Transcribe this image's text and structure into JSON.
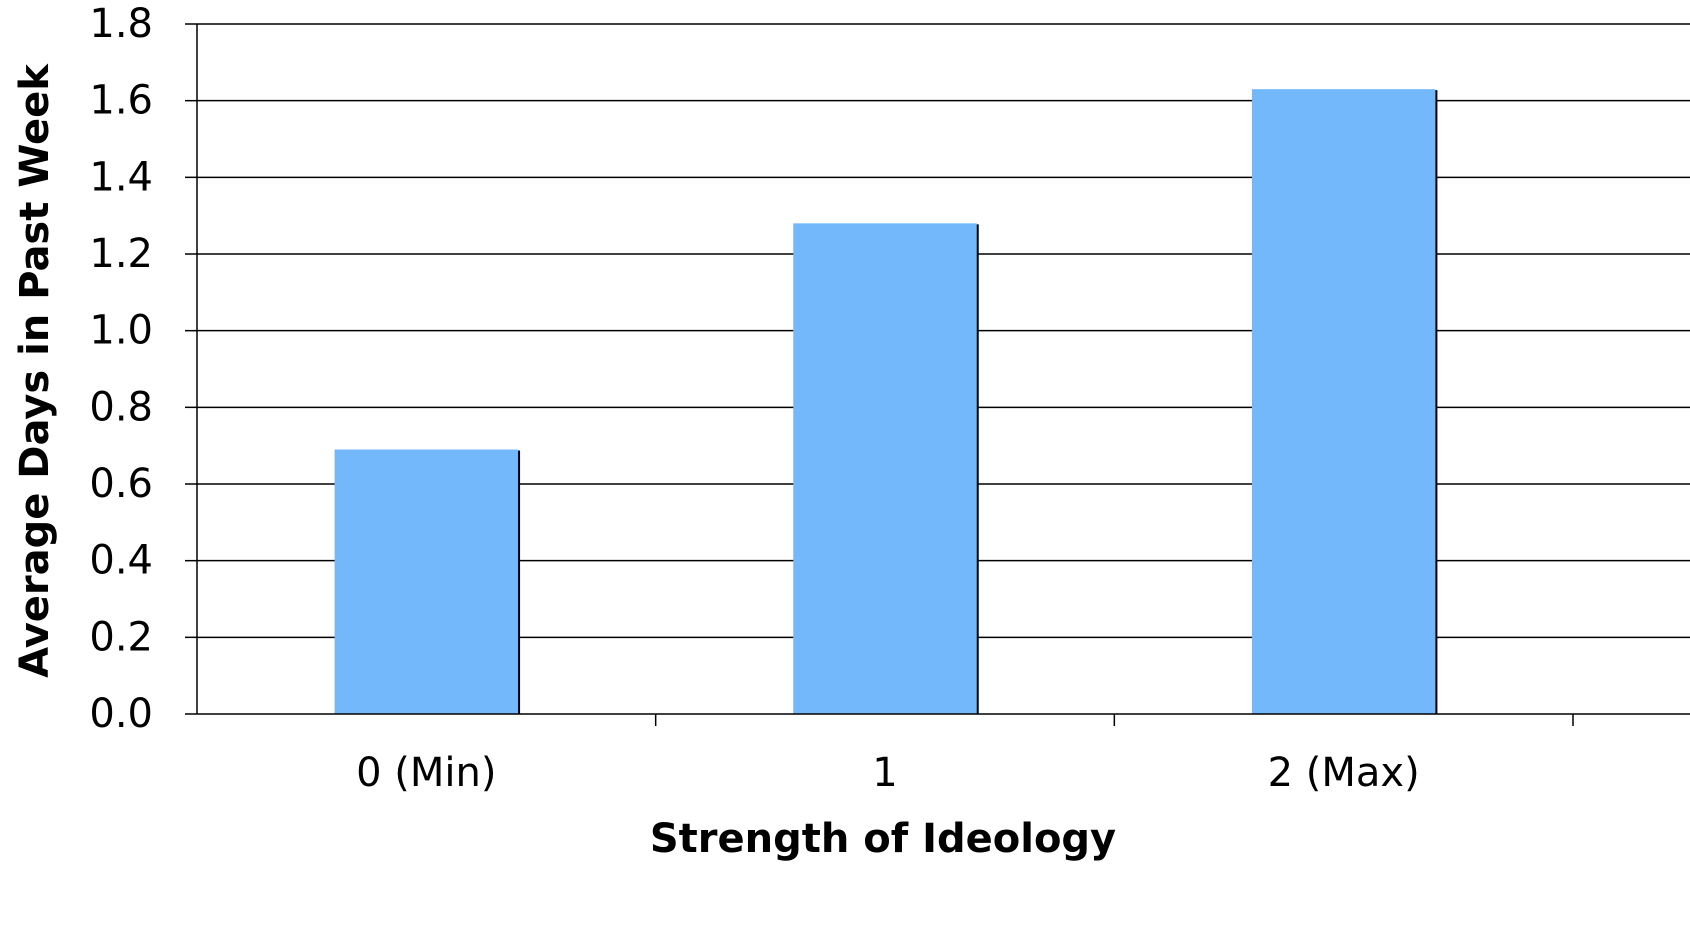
{
  "chart_data": {
    "type": "bar",
    "title": "",
    "xlabel": "Strength of Ideology",
    "ylabel": "Average Days in Past Week",
    "categories": [
      "0 (Min)",
      "1",
      "2 (Max)"
    ],
    "values": [
      0.69,
      1.28,
      1.63
    ],
    "ylim": [
      0,
      1.8
    ],
    "yticks": [
      0.0,
      0.2,
      0.4,
      0.6,
      0.8,
      1.0,
      1.2,
      1.4,
      1.6,
      1.8
    ],
    "ytick_labels": [
      "0.0",
      "0.2",
      "0.4",
      "0.6",
      "0.8",
      "1.0",
      "1.2",
      "1.4",
      "1.6",
      "1.8"
    ],
    "grid": true,
    "legend": "none",
    "bar_color": "#74B8FC"
  }
}
